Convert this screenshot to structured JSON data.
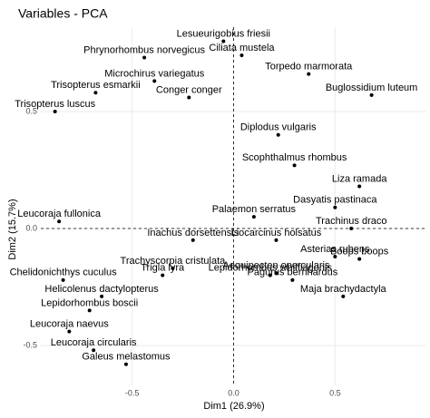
{
  "chart_data": {
    "type": "scatter",
    "title": "Variables - PCA",
    "xlabel": "Dim1 (26.9%)",
    "ylabel": "Dim2 (15.7%)",
    "xlim": [
      -0.95,
      0.95
    ],
    "ylim": [
      -0.67,
      0.86
    ],
    "xticks": [
      -0.5,
      {
        "value": 0,
        "label": "0.0"
      },
      0.5
    ],
    "yticks": [
      -0.5,
      {
        "value": 0,
        "label": "0.0"
      },
      0.5
    ],
    "grid": true,
    "color": "#000000",
    "labels": [
      "Lesueurigobius friesii",
      "Ciliata mustela",
      "Phrynorhombus norvegicus",
      "Microchirus variegatus",
      "Trisopterus esmarkii",
      "Conger conger",
      "Torpedo marmorata",
      "Buglossidium luteum",
      "Trisopterus luscus",
      "Diplodus vulgaris",
      "Scophthalmus rhombus",
      "Liza ramada",
      "Dasyatis pastinaca",
      "Trachinus draco",
      "Palaemon serratus",
      "Leucoraja fullonica",
      "Inachus dorsettensis",
      "Liocarcinus holsatus",
      "Asterias rubens",
      "Boops boops",
      "Aequipecten opercularis",
      "Lepidorhombus whiffiagonis",
      "Pagurus bernhardus",
      "Maja brachydactyla",
      "Trachyscorpia cristulata",
      "Trigla lyra",
      "Chelidonichthys cuculus",
      "Helicolenus dactylopterus",
      "Lepidorhombus boscii",
      "Leucoraja naevus",
      "Leucoraja circularis",
      "Galeus melastomus"
    ],
    "x": [
      -0.05,
      0.04,
      -0.44,
      -0.39,
      -0.68,
      -0.22,
      0.37,
      0.68,
      -0.88,
      0.22,
      0.3,
      0.62,
      0.5,
      0.58,
      0.1,
      -0.86,
      -0.2,
      0.21,
      0.5,
      0.62,
      0.21,
      0.18,
      0.29,
      0.54,
      -0.3,
      -0.35,
      -0.84,
      -0.65,
      -0.71,
      -0.81,
      -0.69,
      -0.53
    ],
    "y": [
      0.8,
      0.74,
      0.73,
      0.63,
      0.58,
      0.56,
      0.66,
      0.57,
      0.5,
      0.4,
      0.27,
      0.18,
      0.09,
      0.0,
      0.05,
      0.03,
      -0.05,
      -0.05,
      -0.12,
      -0.13,
      -0.19,
      -0.2,
      -0.22,
      -0.29,
      -0.17,
      -0.2,
      -0.22,
      -0.29,
      -0.35,
      -0.44,
      -0.52,
      -0.58
    ]
  }
}
